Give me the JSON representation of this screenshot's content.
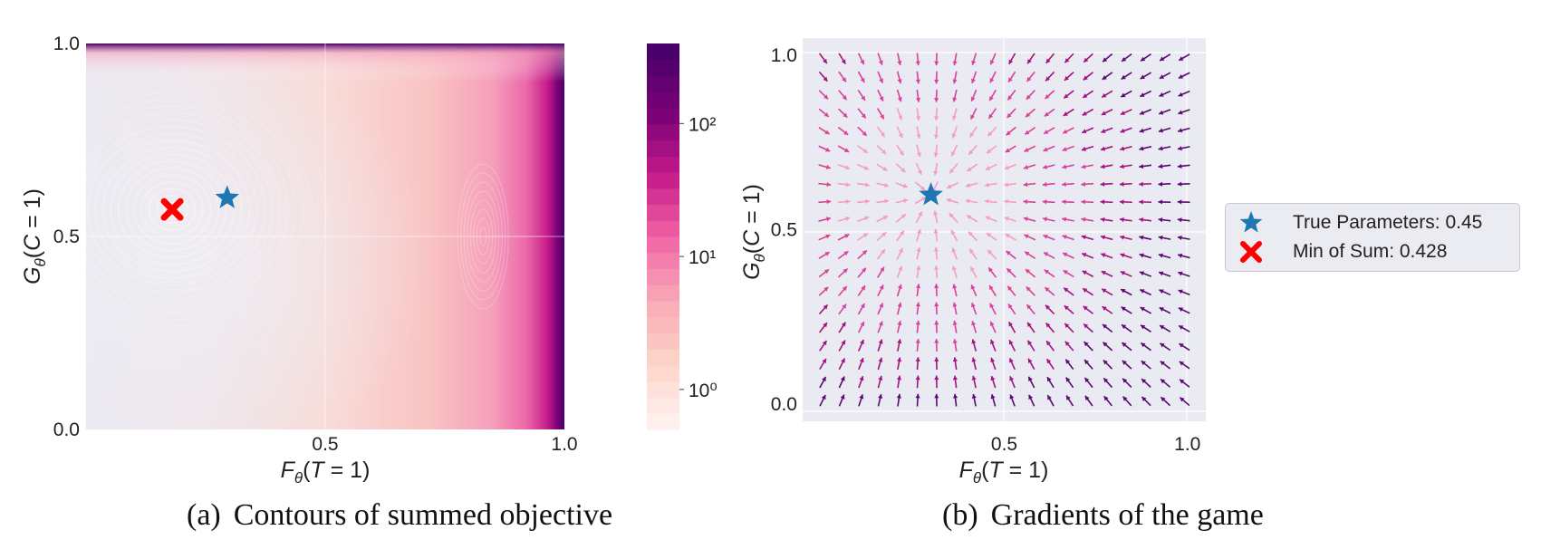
{
  "captions": {
    "a_label": "(a)",
    "a_text": "Contours of summed objective",
    "b_label": "(b)",
    "b_text": "Gradients of the game"
  },
  "legend": {
    "true_params": "True Parameters: 0.45",
    "min_sum": "Min of Sum: 0.428"
  },
  "colors": {
    "star": "#1f77b4",
    "cross": "#ff0000",
    "background_b": "#eaeaf2",
    "cmap": [
      "#fff0ee",
      "#fcd3c7",
      "#f9a7b6",
      "#f164a5",
      "#c51b8a",
      "#7a0177",
      "#49006a"
    ]
  },
  "chart_data": [
    {
      "type": "heatmap",
      "xlabel": "F_θ(T = 1)",
      "ylabel": "G_θ(C = 1)",
      "xlim": [
        0,
        1
      ],
      "ylim": [
        0,
        1
      ],
      "xticks": [
        "0.5",
        "1.0"
      ],
      "yticks": [
        "0.0",
        "0.5",
        "1.0"
      ],
      "colorbar": {
        "scale": "log",
        "ticks": [
          "10⁰",
          "10¹",
          "10²"
        ],
        "range": [
          0.5,
          400
        ]
      },
      "markers": [
        {
          "name": "True Parameters",
          "x": 0.295,
          "y": 0.6,
          "symbol": "star"
        },
        {
          "name": "Min of Sum",
          "x": 0.18,
          "y": 0.57,
          "symbol": "cross"
        }
      ],
      "grid": true
    },
    {
      "type": "quiver",
      "xlabel": "F_θ(T = 1)",
      "ylabel": "G_θ(C = 1)",
      "xlim": [
        -0.05,
        1.05
      ],
      "ylim": [
        -0.05,
        1.05
      ],
      "xticks": [
        "0.5",
        "1.0"
      ],
      "yticks": [
        "0.0",
        "0.5",
        "1.0"
      ],
      "grid_points": 20,
      "target": {
        "x": 0.3,
        "y": 0.6
      },
      "markers": [
        {
          "name": "True Parameters",
          "x": 0.3,
          "y": 0.6,
          "symbol": "star"
        }
      ],
      "grid": true,
      "legend_position": "right"
    }
  ]
}
